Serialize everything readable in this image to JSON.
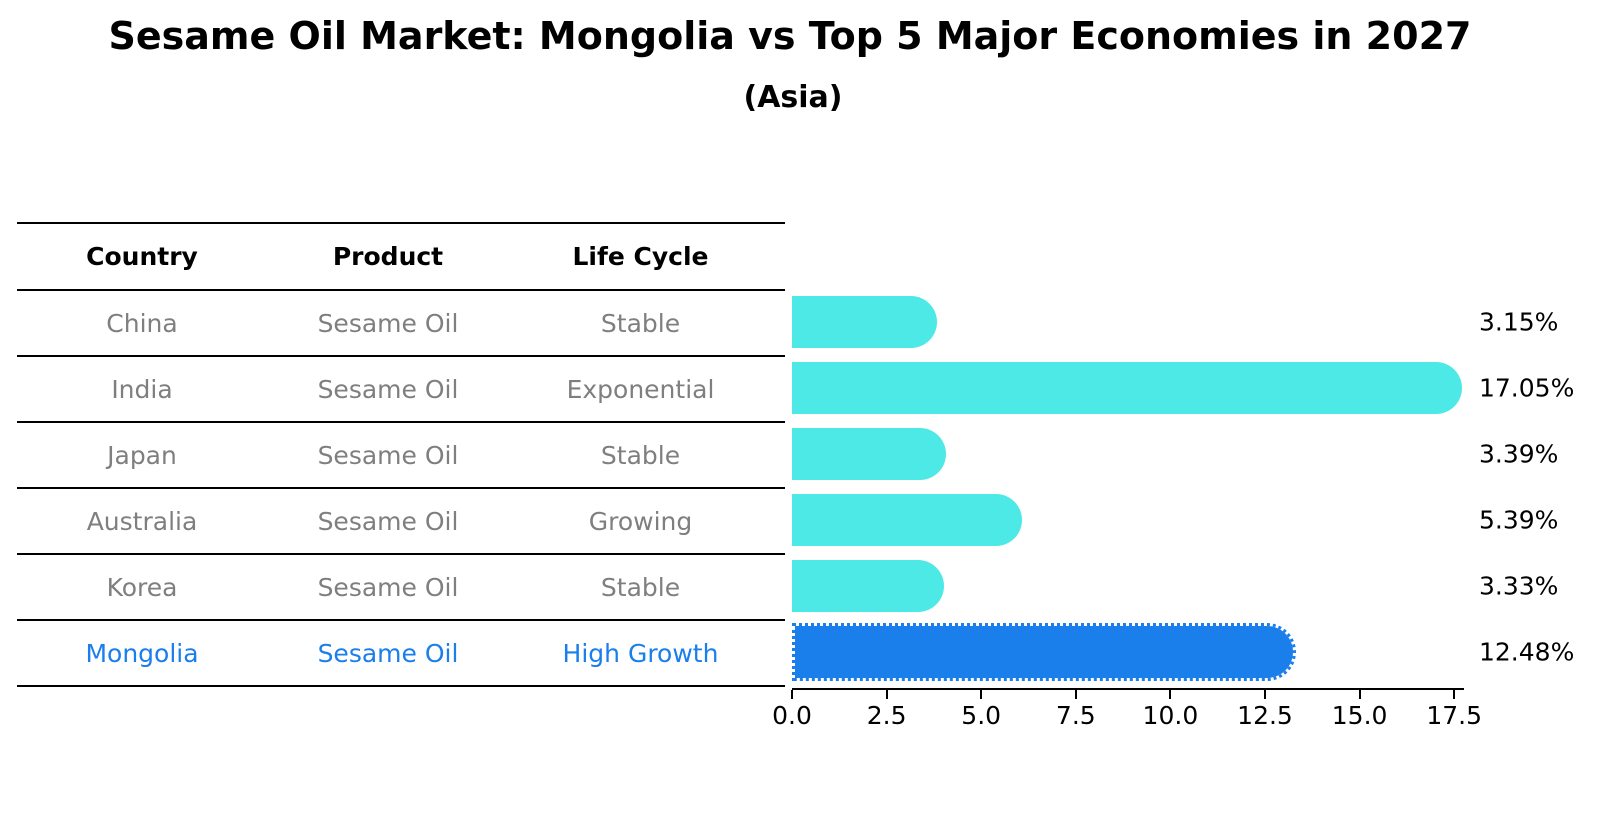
{
  "title": "Sesame Oil Market: Mongolia vs Top 5 Major Economies in 2027",
  "subtitle": "(Asia)",
  "table": {
    "headers": [
      "Country",
      "Product",
      "Life Cycle"
    ],
    "rows": [
      {
        "country": "China",
        "product": "Sesame Oil",
        "life_cycle": "Stable",
        "highlight": false
      },
      {
        "country": "India",
        "product": "Sesame Oil",
        "life_cycle": "Exponential",
        "highlight": false
      },
      {
        "country": "Japan",
        "product": "Sesame Oil",
        "life_cycle": "Stable",
        "highlight": false
      },
      {
        "country": "Australia",
        "product": "Sesame Oil",
        "life_cycle": "Growing",
        "highlight": false
      },
      {
        "country": "Korea",
        "product": "Sesame Oil",
        "life_cycle": "Stable",
        "highlight": false
      },
      {
        "country": "Mongolia",
        "product": "Sesame Oil",
        "life_cycle": "High Growth",
        "highlight": true
      }
    ]
  },
  "chart_data": {
    "type": "bar",
    "orientation": "horizontal",
    "title": "Sesame Oil Market: Mongolia vs Top 5 Major Economies in 2027",
    "subtitle": "(Asia)",
    "categories": [
      "China",
      "India",
      "Japan",
      "Australia",
      "Korea",
      "Mongolia"
    ],
    "values": [
      3.15,
      17.05,
      3.39,
      5.39,
      3.33,
      12.48
    ],
    "value_labels": [
      "3.15%",
      "17.05%",
      "3.39%",
      "5.39%",
      "3.33%",
      "12.48%"
    ],
    "x_ticks": [
      0.0,
      2.5,
      5.0,
      7.5,
      10.0,
      12.5,
      15.0,
      17.5
    ],
    "x_tick_labels": [
      "0.0",
      "2.5",
      "5.0",
      "7.5",
      "10.0",
      "12.5",
      "15.0",
      "17.5"
    ],
    "xlim": [
      0,
      17.9
    ],
    "grid": false,
    "legend": "none",
    "highlight_index": 5,
    "bar_color": "#4DE9E6",
    "highlight_bar_color": "#1A7EEB",
    "highlight_edge_style": "dotted"
  },
  "colors": {
    "background": "#ffffff",
    "bar_cyan": "#4DE9E6",
    "bar_blue": "#1A7EEB",
    "table_text_gray": "#7f7f7f",
    "highlight_text_blue": "#1A7EEB",
    "axis_black": "#000000"
  }
}
